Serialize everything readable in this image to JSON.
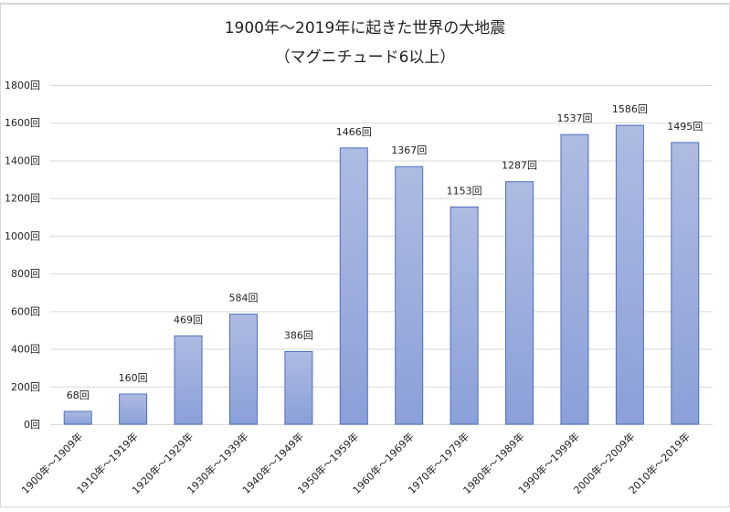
{
  "chart_data": {
    "type": "bar",
    "title": "1900年～2019年に起きた世界の大地震",
    "subtitle": "（マグニチュード6以上）",
    "categories": [
      "1900年～1909年",
      "1910年～1919年",
      "1920年～1929年",
      "1930年～1939年",
      "1940年～1949年",
      "1950年～1959年",
      "1960年～1969年",
      "1970年～1979年",
      "1980年～1989年",
      "1990年～1999年",
      "2000年～2009年",
      "2010年～2019年"
    ],
    "values": [
      68,
      160,
      469,
      584,
      386,
      1466,
      1367,
      1153,
      1287,
      1537,
      1586,
      1495
    ],
    "value_suffix": "回",
    "ylim": [
      0,
      1800
    ],
    "yticks": [
      0,
      200,
      400,
      600,
      800,
      1000,
      1200,
      1400,
      1600,
      1800
    ],
    "grid": true,
    "colors": {
      "bar_top": "#aebbe2",
      "bar_bottom": "#8ba0d9",
      "bar_border": "#4c6fbf",
      "grid": "#d9d9d9"
    }
  }
}
